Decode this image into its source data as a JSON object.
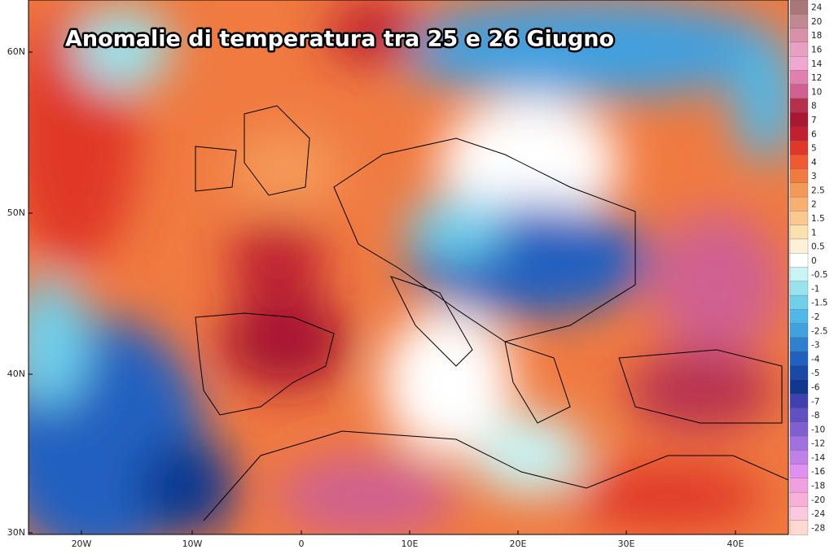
{
  "title": "Anomalie di temperatura tra 25 e 26 Giugno",
  "lat_labels": [
    "60N",
    "50N",
    "40N",
    "30N"
  ],
  "lon_labels": [
    "20W",
    "10W",
    "0",
    "10E",
    "20E",
    "30E",
    "40E"
  ],
  "colorbar": [
    {
      "label": "24",
      "color": "#a87878"
    },
    {
      "label": "20",
      "color": "#c08890"
    },
    {
      "label": "18",
      "color": "#d890a8"
    },
    {
      "label": "16",
      "color": "#e8a0c0"
    },
    {
      "label": "14",
      "color": "#f0a8d0"
    },
    {
      "label": "12",
      "color": "#e080b0"
    },
    {
      "label": "10",
      "color": "#d06090"
    },
    {
      "label": "8",
      "color": "#b83050"
    },
    {
      "label": "7",
      "color": "#a81830"
    },
    {
      "label": "6",
      "color": "#c02030"
    },
    {
      "label": "5",
      "color": "#e03828"
    },
    {
      "label": "4",
      "color": "#f05a30"
    },
    {
      "label": "3",
      "color": "#f07a40"
    },
    {
      "label": "2.5",
      "color": "#f49a58"
    },
    {
      "label": "2",
      "color": "#f8b070"
    },
    {
      "label": "1.5",
      "color": "#fac890"
    },
    {
      "label": "1",
      "color": "#fde0b0"
    },
    {
      "label": "0.5",
      "color": "#fff0d8"
    },
    {
      "label": "0",
      "color": "#ffffff"
    },
    {
      "label": "-0.5",
      "color": "#c8f4f4"
    },
    {
      "label": "-1",
      "color": "#98e4ee"
    },
    {
      "label": "-1.5",
      "color": "#70d0ec"
    },
    {
      "label": "-2",
      "color": "#50b8e8"
    },
    {
      "label": "-2.5",
      "color": "#40a0e0"
    },
    {
      "label": "-3",
      "color": "#3080d0"
    },
    {
      "label": "-4",
      "color": "#2060c0"
    },
    {
      "label": "-5",
      "color": "#1848a8"
    },
    {
      "label": "-6",
      "color": "#103890"
    },
    {
      "label": "-7",
      "color": "#4040b0"
    },
    {
      "label": "-8",
      "color": "#6050c0"
    },
    {
      "label": "-10",
      "color": "#8060d0"
    },
    {
      "label": "-12",
      "color": "#a070e0"
    },
    {
      "label": "-14",
      "color": "#c080e8"
    },
    {
      "label": "-16",
      "color": "#e090f0"
    },
    {
      "label": "-18",
      "color": "#f0a0e0"
    },
    {
      "label": "-20",
      "color": "#f8b0d8"
    },
    {
      "label": "-24",
      "color": "#fcc8e0"
    },
    {
      "label": "-28",
      "color": "#ffd8d0"
    }
  ]
}
